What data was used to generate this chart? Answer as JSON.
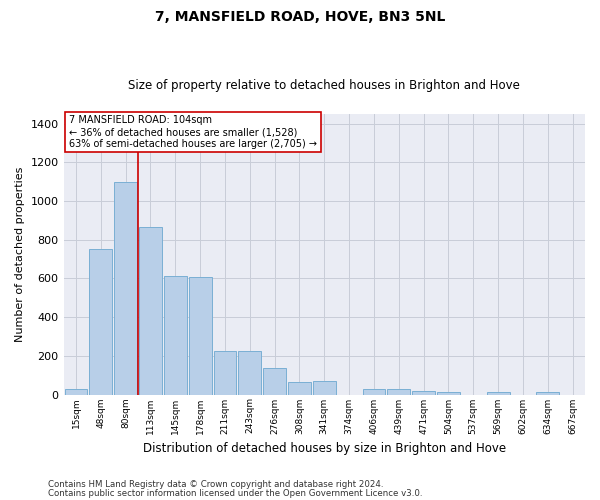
{
  "title": "7, MANSFIELD ROAD, HOVE, BN3 5NL",
  "subtitle": "Size of property relative to detached houses in Brighton and Hove",
  "xlabel": "Distribution of detached houses by size in Brighton and Hove",
  "ylabel": "Number of detached properties",
  "categories": [
    "15sqm",
    "48sqm",
    "80sqm",
    "113sqm",
    "145sqm",
    "178sqm",
    "211sqm",
    "243sqm",
    "276sqm",
    "308sqm",
    "341sqm",
    "374sqm",
    "406sqm",
    "439sqm",
    "471sqm",
    "504sqm",
    "537sqm",
    "569sqm",
    "602sqm",
    "634sqm",
    "667sqm"
  ],
  "values": [
    30,
    750,
    1100,
    865,
    615,
    610,
    225,
    225,
    135,
    65,
    70,
    0,
    30,
    30,
    20,
    12,
    0,
    12,
    0,
    12,
    0
  ],
  "bar_color": "#b8cfe8",
  "bar_edge_color": "#7aafd4",
  "grid_color": "#c8cdd8",
  "bg_color": "#eaecf4",
  "vline_x": 2.5,
  "vline_color": "#cc0000",
  "annotation_text": "7 MANSFIELD ROAD: 104sqm\n← 36% of detached houses are smaller (1,528)\n63% of semi-detached houses are larger (2,705) →",
  "annotation_box_color": "#cc0000",
  "ylim": [
    0,
    1450
  ],
  "yticks": [
    0,
    200,
    400,
    600,
    800,
    1000,
    1200,
    1400
  ],
  "footnote1": "Contains HM Land Registry data © Crown copyright and database right 2024.",
  "footnote2": "Contains public sector information licensed under the Open Government Licence v3.0."
}
